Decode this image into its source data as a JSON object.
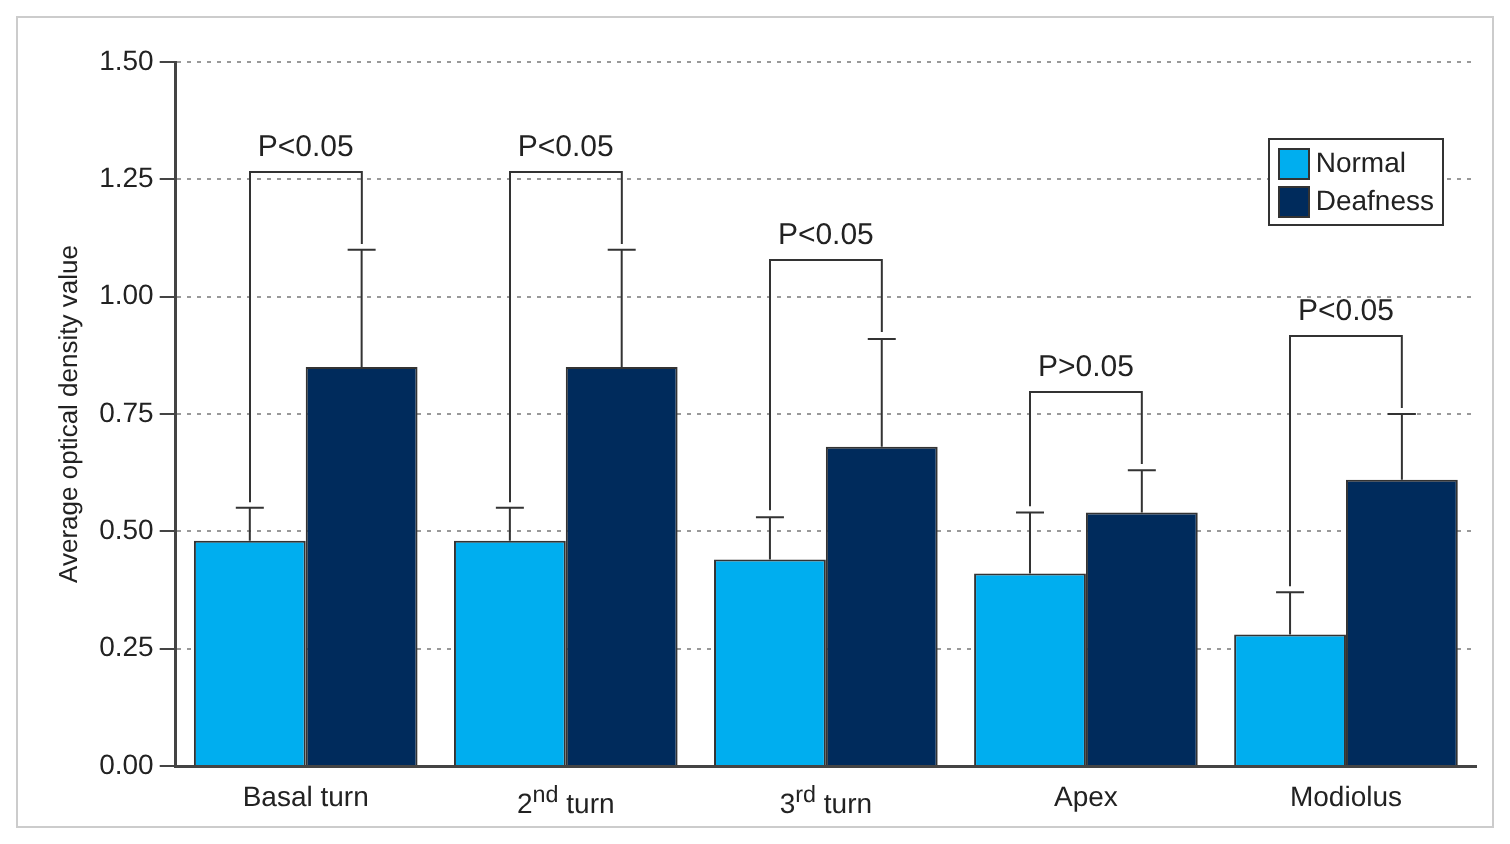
{
  "chart_data": {
    "type": "bar",
    "ylabel": "Average optical density value",
    "categories": [
      "Basal turn",
      "2$^{nd}$ turn",
      "3$^{rd}$ turn",
      "Apex",
      "Modiolus"
    ],
    "series": [
      {
        "name": "Normal",
        "color": "#00aeef",
        "values": [
          0.48,
          0.48,
          0.44,
          0.41,
          0.28
        ],
        "errors": [
          0.07,
          0.07,
          0.09,
          0.13,
          0.09
        ]
      },
      {
        "name": "Deafness",
        "color": "#002b5c",
        "values": [
          0.85,
          0.85,
          0.68,
          0.54,
          0.61
        ],
        "errors": [
          0.25,
          0.25,
          0.23,
          0.09,
          0.14
        ]
      }
    ],
    "ylim": [
      0,
      1.5
    ],
    "yticks": [
      {
        "value": 0,
        "label": "0.00"
      },
      {
        "value": 0.25,
        "label": "0.25"
      },
      {
        "value": 0.5,
        "label": "0.50"
      },
      {
        "value": 0.75,
        "label": "0.75"
      },
      {
        "value": 1,
        "label": "1.00"
      },
      {
        "value": 1.25,
        "label": "1.25"
      },
      {
        "value": 1.5,
        "label": "1.50"
      }
    ],
    "annotations": [
      "P<0.05",
      "P<0.05",
      "P<0.05",
      "P>0.05",
      "P<0.05"
    ],
    "grid": "y",
    "legend": "top right"
  }
}
